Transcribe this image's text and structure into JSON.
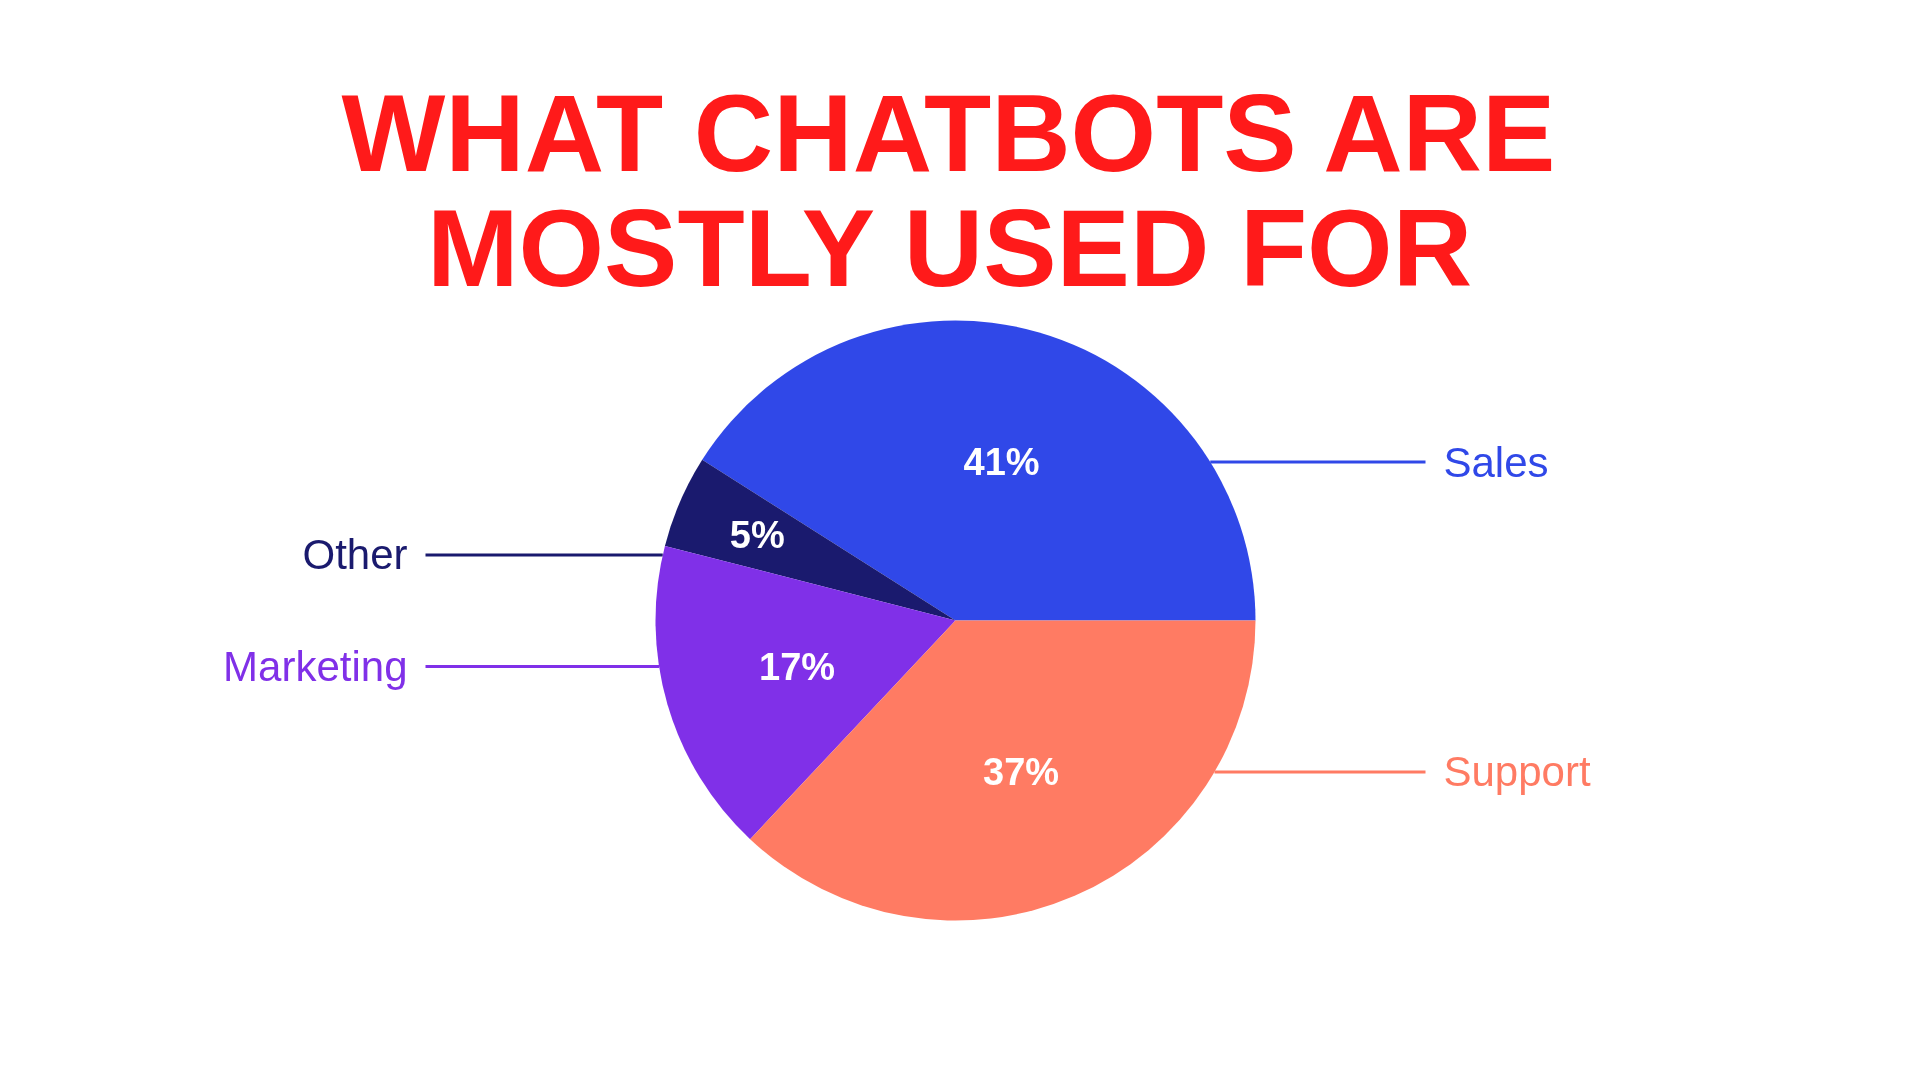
{
  "chart_data": {
    "type": "pie",
    "title": "WHAT CHATBOTS ARE\nMOSTLY USED FOR",
    "categories": [
      "Sales",
      "Other",
      "Marketing",
      "Support"
    ],
    "values": [
      41,
      5,
      17,
      37
    ],
    "colors": [
      "#3048e8",
      "#1a1a6e",
      "#8030e8",
      "#ff7b63"
    ],
    "value_labels": [
      "41%",
      "5%",
      "17%",
      "37%"
    ]
  }
}
